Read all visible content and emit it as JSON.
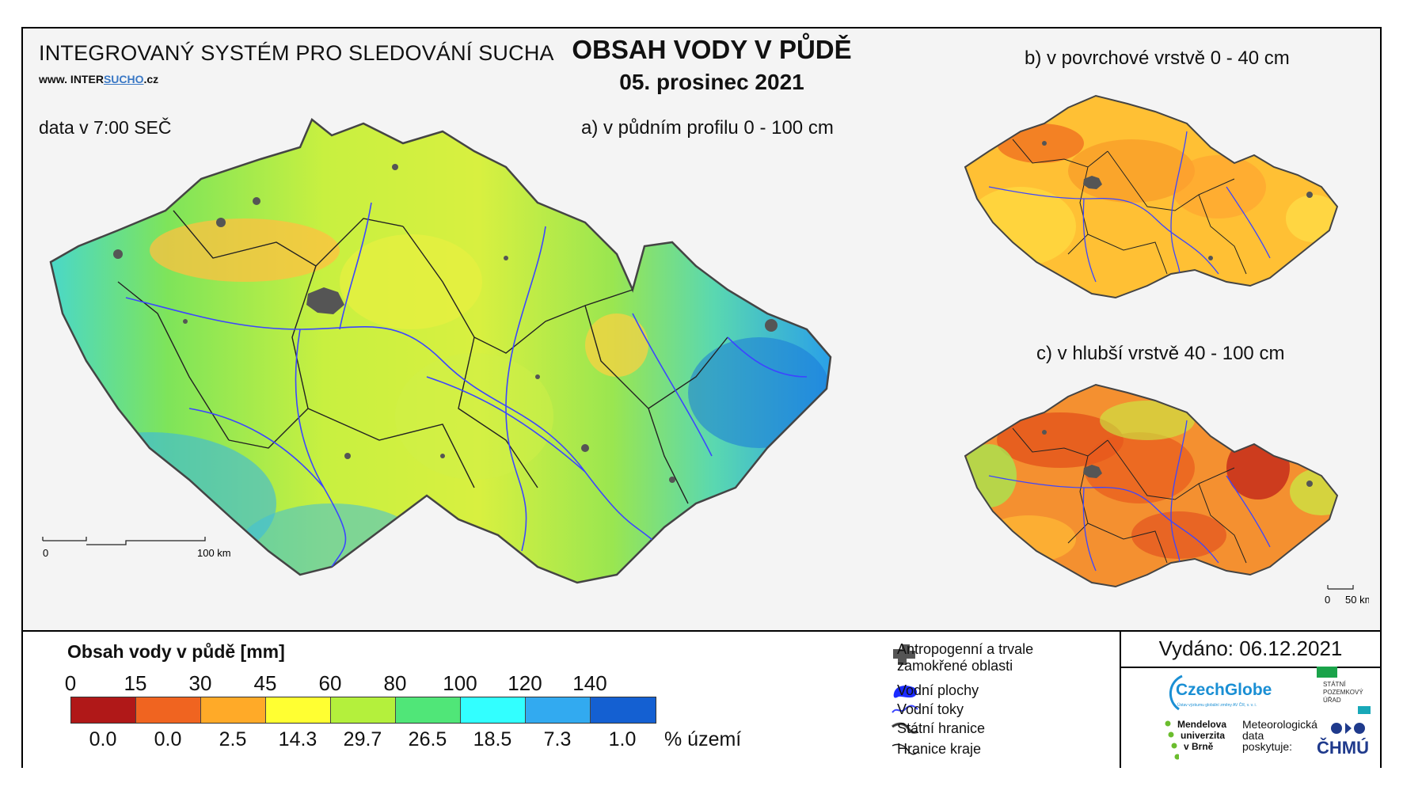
{
  "header": {
    "system_title": "INTEGROVANÝ SYSTÉM PRO SLEDOVÁNÍ SUCHA",
    "website_prefix": "www. INTER",
    "website_highlight": "SUCHO",
    "website_suffix": ".cz",
    "data_time": "data v 7:00 SEČ",
    "main_title": "OBSAH VODY V PŮDĚ",
    "date": "05. prosinec 2021"
  },
  "maps": {
    "a": {
      "title": "a) v půdním profilu 0 - 100 cm",
      "scale_start": "0",
      "scale_end": "100 km"
    },
    "b": {
      "title": "b) v povrchové vrstvě 0 - 40 cm"
    },
    "c": {
      "title": "c) v hlubší vrstvě 40 - 100 cm",
      "scale_start": "0",
      "scale_end": "50 km"
    }
  },
  "legend": {
    "title": "Obsah vody v půdě  [mm]",
    "thresholds": [
      "0",
      "15",
      "30",
      "45",
      "60",
      "80",
      "100",
      "120",
      "140"
    ],
    "colors": [
      "#b01818",
      "#f06420",
      "#ffaa28",
      "#ffff32",
      "#b4f03c",
      "#50e678",
      "#32ffff",
      "#32aaf0",
      "#1460d2"
    ],
    "percent_area": [
      "0.0",
      "0.0",
      "2.5",
      "14.3",
      "29.7",
      "26.5",
      "18.5",
      "7.3",
      "1.0"
    ],
    "percent_unit": "% území"
  },
  "map_key": {
    "urban": "Antropogenní a trvale zamokřené oblasti",
    "water_bodies": "Vodní plochy",
    "rivers": "Vodní toky",
    "state_border": "Státní hranice",
    "region_border": "Hranice kraje"
  },
  "issued": "Vydáno: 06.12.2021",
  "logos": {
    "czechglobe": "CzechGlobe",
    "czechglobe_sub": "Ústav výzkumu globální změny AV ČR, v. v. i.",
    "spu_line1": "STÁTNÍ",
    "spu_line2": "POZEMKOVÝ",
    "spu_line3": "ÚŘAD",
    "mendelu_line1": "Mendelova",
    "mendelu_line2": "univerzita",
    "mendelu_line3": "v Brně",
    "chmu_line1": "Meteorologická",
    "chmu_line2": "data",
    "chmu_line3": "poskytuje:",
    "chmu": "ČHMÚ"
  }
}
